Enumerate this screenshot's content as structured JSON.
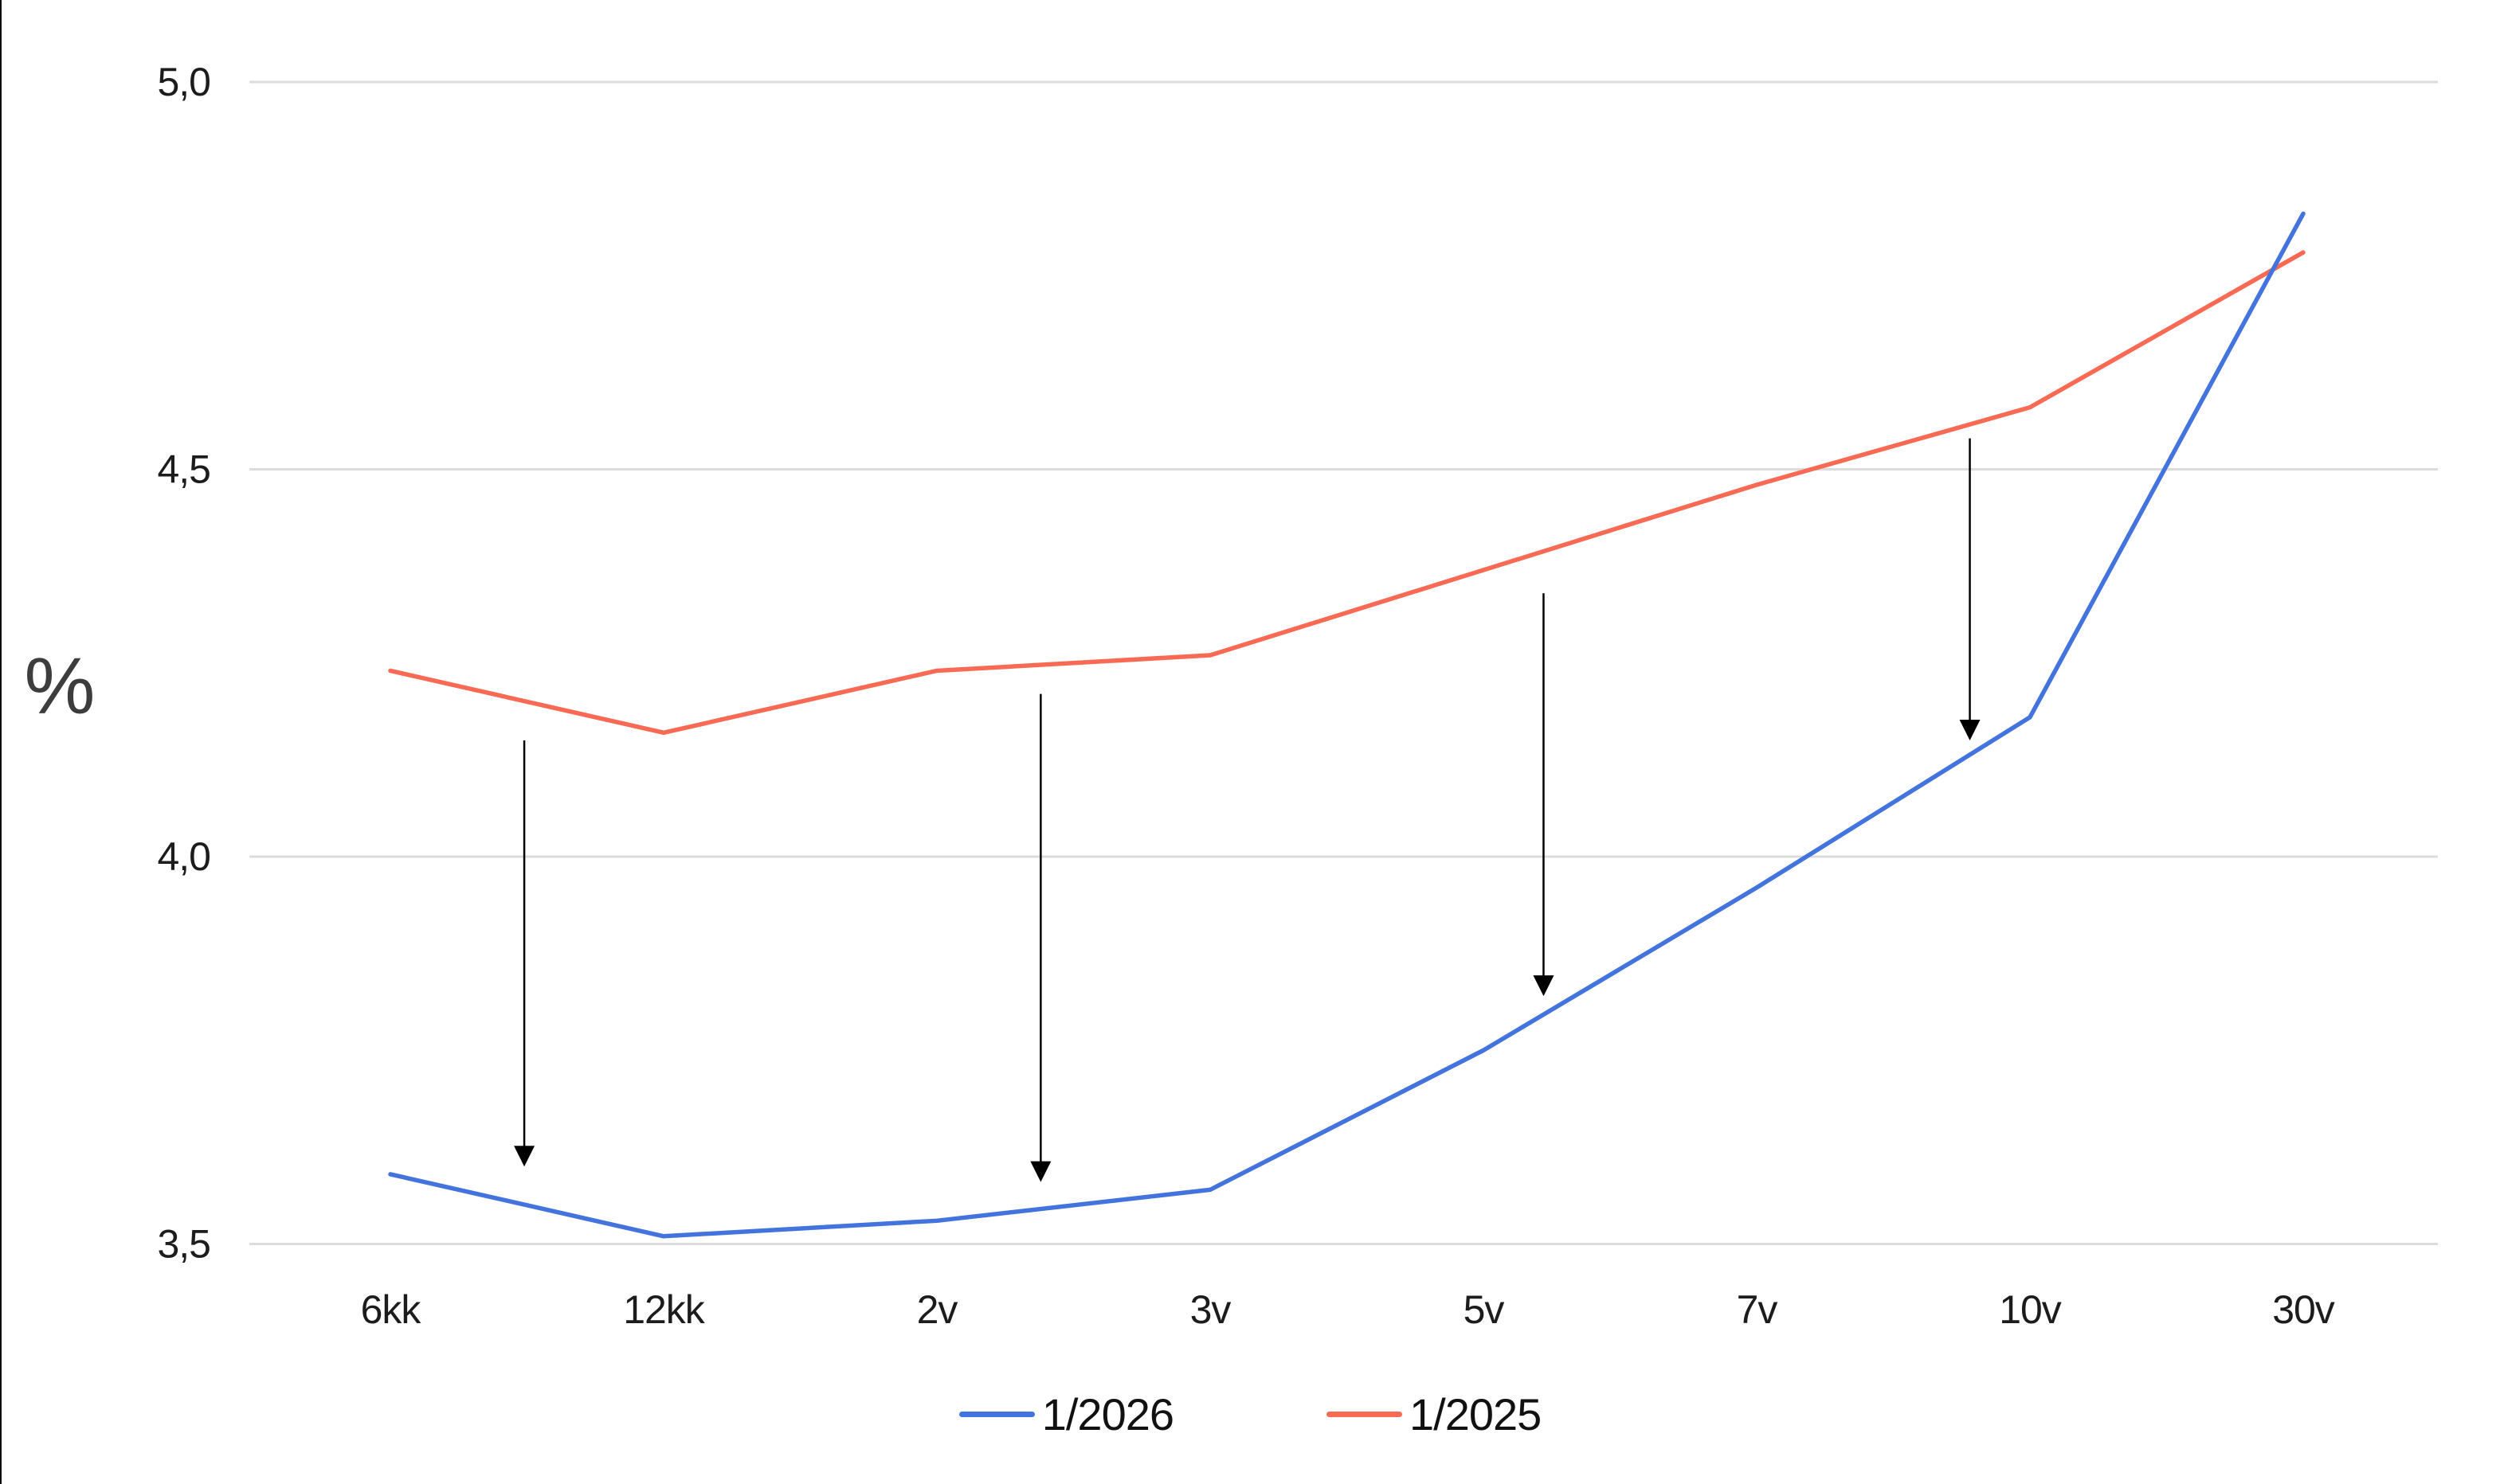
{
  "chart_data": {
    "type": "line",
    "title": "",
    "xlabel": "",
    "ylabel": "%",
    "categories": [
      "6kk",
      "12kk",
      "2v",
      "3v",
      "5v",
      "7v",
      "10v",
      "30v"
    ],
    "series": [
      {
        "name": "1/2026",
        "color": "#4374DD",
        "values": [
          3.59,
          3.51,
          3.53,
          3.57,
          3.75,
          3.96,
          4.18,
          4.83
        ]
      },
      {
        "name": "1/2025",
        "color": "#F96A55",
        "values": [
          4.24,
          4.16,
          4.24,
          4.26,
          4.37,
          4.48,
          4.58,
          4.78
        ]
      }
    ],
    "ylim": [
      3.5,
      5.0
    ],
    "yticks": [
      {
        "value": 3.5,
        "label": "3,5"
      },
      {
        "value": 4.0,
        "label": "4,0"
      },
      {
        "value": 4.5,
        "label": "4,5"
      },
      {
        "value": 5.0,
        "label": "5,0"
      }
    ],
    "grid": true,
    "legend_position": "bottom-center",
    "arrows": [
      {
        "x": 0.49,
        "from": 4.15,
        "to": 3.6
      },
      {
        "x": 2.38,
        "from": 4.21,
        "to": 3.58
      },
      {
        "x": 4.22,
        "from": 4.34,
        "to": 3.82
      },
      {
        "x": 5.78,
        "from": 4.54,
        "to": 4.15
      }
    ]
  },
  "colors": {
    "grid": "#dcdcdc",
    "axis_text": "#1c1c1c",
    "ylabel_text": "#3d3d3d",
    "arrow": "#000000",
    "page_border": "#0a0a0a",
    "background": "#ffffff"
  }
}
